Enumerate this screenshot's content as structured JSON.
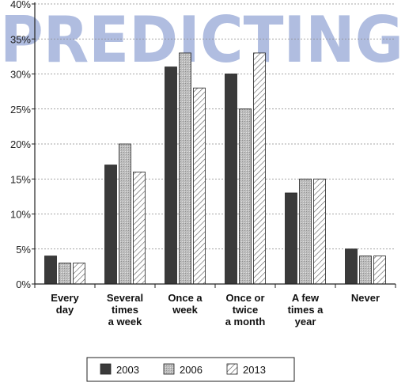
{
  "chart_data": {
    "type": "bar",
    "title": "",
    "xlabel": "",
    "ylabel": "",
    "ylim": [
      0,
      40
    ],
    "y_ticks": [
      "0%",
      "5%",
      "10%",
      "15%",
      "20%",
      "25%",
      "30%",
      "35%",
      "40%"
    ],
    "categories": [
      [
        "Every",
        "day"
      ],
      [
        "Several",
        "times",
        "a week"
      ],
      [
        "Once a",
        "week"
      ],
      [
        "Once or",
        "twice",
        "a month"
      ],
      [
        "A few",
        "times a",
        "year"
      ],
      [
        "Never"
      ]
    ],
    "series": [
      {
        "name": "2003",
        "fill": "solid-dark",
        "values": [
          4,
          17,
          31,
          30,
          13,
          5
        ]
      },
      {
        "name": "2006",
        "fill": "stipple-grey",
        "values": [
          3,
          20,
          33,
          25,
          15,
          4
        ]
      },
      {
        "name": "2013",
        "fill": "hatched",
        "values": [
          3,
          16,
          28,
          33,
          15,
          4
        ]
      }
    ],
    "grid": "horizontal-dashed",
    "legend_position": "bottom"
  },
  "watermark": {
    "text": "PREDICTING",
    "color": "#6f86c6"
  },
  "colors": {
    "solid": "#3a3a3a",
    "stipple": "#b5b5b5",
    "hatch": "#555555",
    "grid": "#8a8a8a",
    "axis": "#222222"
  }
}
